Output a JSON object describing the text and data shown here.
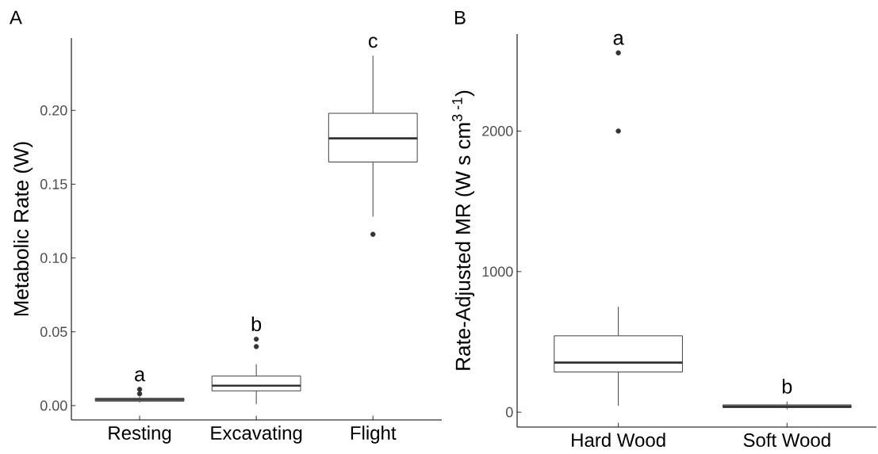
{
  "chart_data": [
    {
      "type": "box",
      "title": "A",
      "ylabel": "Metabolic Rate (W)",
      "categories": [
        "Resting",
        "Excavating",
        "Flight"
      ],
      "color": "#333333",
      "boxes": [
        {
          "low": 0.002,
          "q1": 0.003,
          "median": 0.004,
          "q3": 0.005,
          "high": 0.006,
          "outliers": [
            0.008,
            0.011
          ]
        },
        {
          "low": 0.001,
          "q1": 0.01,
          "median": 0.0135,
          "q3": 0.02,
          "high": 0.028,
          "outliers": [
            0.04,
            0.045
          ]
        },
        {
          "low": 0.128,
          "q1": 0.165,
          "median": 0.181,
          "q3": 0.198,
          "high": 0.237,
          "outliers": [
            0.116
          ]
        }
      ],
      "ylim": [
        -0.0097,
        0.249
      ],
      "yticks": [
        {
          "value": 0,
          "label": "0.00"
        },
        {
          "value": 0.05,
          "label": "0.05"
        },
        {
          "value": 0.1,
          "label": "0.10"
        },
        {
          "value": 0.15,
          "label": "0.15"
        },
        {
          "value": 0.2,
          "label": "0.20"
        }
      ],
      "annotations": [
        "a",
        "b",
        "c"
      ]
    },
    {
      "type": "box",
      "title": "B",
      "ylabel": "Rate-Adjusted MR (W s cm$^{3 -1}$)",
      "categories": [
        "Hard Wood",
        "Soft Wood"
      ],
      "color": "#333333",
      "boxes": [
        {
          "low": 45,
          "q1": 286,
          "median": 353,
          "q3": 543,
          "high": 750,
          "outliers": [
            2000,
            2556
          ]
        },
        {
          "low": 20,
          "q1": 32,
          "median": 42,
          "q3": 52,
          "high": 75
        }
      ],
      "ylim": [
        -106,
        2690
      ],
      "yticks": [
        0,
        1000,
        2000
      ],
      "annotations": [
        "a",
        "b"
      ]
    }
  ]
}
